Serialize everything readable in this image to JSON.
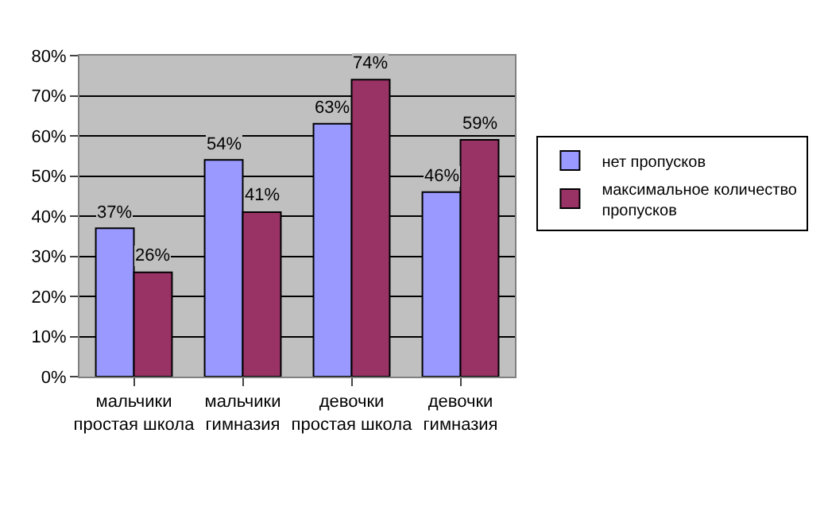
{
  "chart_data": {
    "type": "bar",
    "categories": [
      "мальчики простая школа",
      "мальчики гимназия",
      "девочки простая школа",
      "девочки гимназия"
    ],
    "series": [
      {
        "name": "нет пропусков",
        "color": "#9999ff",
        "values": [
          37,
          54,
          63,
          46
        ],
        "value_labels": [
          "37%",
          "54%",
          "63%",
          "46%"
        ]
      },
      {
        "name": "максимальное количество пропусков",
        "color": "#993366",
        "values": [
          26,
          41,
          74,
          59
        ],
        "value_labels": [
          "26%",
          "41%",
          "74%",
          "59%"
        ]
      }
    ],
    "ylim": [
      0,
      80
    ],
    "yticks": [
      {
        "value": 0,
        "label": "0%"
      },
      {
        "value": 10,
        "label": "10%"
      },
      {
        "value": 20,
        "label": "20%"
      },
      {
        "value": 30,
        "label": "30%"
      },
      {
        "value": 40,
        "label": "40%"
      },
      {
        "value": 50,
        "label": "50%"
      },
      {
        "value": 60,
        "label": "60%"
      },
      {
        "value": 70,
        "label": "70%"
      },
      {
        "value": 80,
        "label": "80%"
      }
    ],
    "grid": "y",
    "legend": "right"
  }
}
